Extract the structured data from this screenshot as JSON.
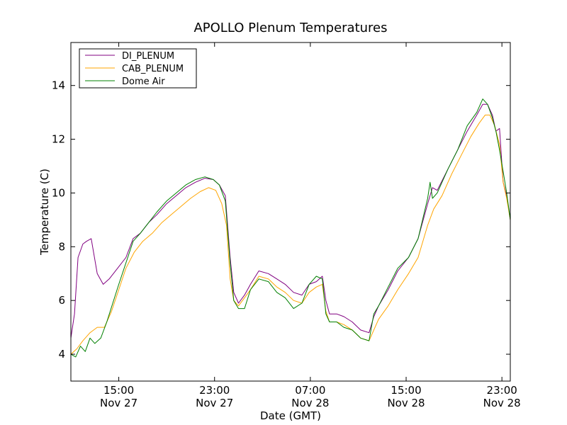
{
  "chart_data": {
    "type": "line",
    "title": "APOLLO Plenum Temperatures",
    "xlabel": "Date (GMT)",
    "ylabel": "Temperature (C)",
    "x_unit": "hours since Nov 27 11:00 GMT",
    "xlim": [
      0,
      36.7
    ],
    "ylim": [
      3,
      15.6
    ],
    "grid": false,
    "legend_position": "top-left",
    "x_ticks": [
      {
        "value": 4,
        "time": "15:00",
        "date": "Nov 27"
      },
      {
        "value": 12,
        "time": "23:00",
        "date": "Nov 27"
      },
      {
        "value": 20,
        "time": "07:00",
        "date": "Nov 28"
      },
      {
        "value": 28,
        "time": "15:00",
        "date": "Nov 28"
      },
      {
        "value": 36,
        "time": "23:00",
        "date": "Nov 28"
      }
    ],
    "y_ticks": [
      {
        "value": 4,
        "label": "4"
      },
      {
        "value": 6,
        "label": "6"
      },
      {
        "value": 8,
        "label": "8"
      },
      {
        "value": 10,
        "label": "10"
      },
      {
        "value": 12,
        "label": "12"
      },
      {
        "value": 14,
        "label": "14"
      }
    ],
    "series": [
      {
        "name": "DI_PLENUM",
        "color": "#800080",
        "x": [
          0,
          0.3,
          0.6,
          1.0,
          1.3,
          1.7,
          2.2,
          2.7,
          3.2,
          3.9,
          4.6,
          5.2,
          5.8,
          6.5,
          7.2,
          8.0,
          8.8,
          9.6,
          10.4,
          11.2,
          11.9,
          12.4,
          12.9,
          13.3,
          13.6,
          14.0,
          14.5,
          15.0,
          15.7,
          16.5,
          17.2,
          17.9,
          18.6,
          19.3,
          19.9,
          20.5,
          21.0,
          21.3,
          21.6,
          22.2,
          22.8,
          23.5,
          24.2,
          24.9,
          25.3,
          25.7,
          26.5,
          27.3,
          28.2,
          29.0,
          29.8,
          30.2,
          30.6,
          31.5,
          32.3,
          33.1,
          33.9,
          34.4,
          34.8,
          35.2,
          35.5,
          35.8,
          36.1,
          36.4,
          36.7
        ],
        "y": [
          4.6,
          5.5,
          7.6,
          8.1,
          8.2,
          8.3,
          7.0,
          6.6,
          6.8,
          7.2,
          7.6,
          8.3,
          8.5,
          8.9,
          9.2,
          9.6,
          9.9,
          10.2,
          10.4,
          10.55,
          10.5,
          10.3,
          9.9,
          7.6,
          6.3,
          5.9,
          6.2,
          6.6,
          7.1,
          7.0,
          6.8,
          6.6,
          6.3,
          6.2,
          6.6,
          6.7,
          6.9,
          6.0,
          5.5,
          5.5,
          5.4,
          5.2,
          4.9,
          4.8,
          5.4,
          5.8,
          6.4,
          7.1,
          7.6,
          8.3,
          9.6,
          10.2,
          10.1,
          10.9,
          11.6,
          12.3,
          12.9,
          13.3,
          13.3,
          12.9,
          12.3,
          12.4,
          10.4,
          9.9,
          9.0
        ]
      },
      {
        "name": "CAB_PLENUM",
        "color": "#ffa500",
        "x": [
          0,
          0.5,
          1.0,
          1.6,
          2.2,
          2.8,
          3.4,
          4.0,
          4.6,
          5.3,
          6.0,
          6.8,
          7.6,
          8.4,
          9.2,
          10.0,
          10.8,
          11.5,
          12.1,
          12.6,
          13.0,
          13.3,
          13.6,
          14.0,
          14.5,
          15.0,
          15.7,
          16.5,
          17.2,
          17.9,
          18.6,
          19.3,
          19.9,
          20.5,
          21.0,
          21.3,
          21.6,
          22.2,
          22.8,
          23.5,
          24.2,
          24.9,
          25.3,
          25.7,
          26.5,
          27.3,
          28.2,
          29.0,
          29.8,
          30.3,
          31.0,
          31.8,
          32.6,
          33.4,
          34.1,
          34.6,
          35.0,
          35.4,
          35.8,
          36.1,
          36.4,
          36.7
        ],
        "y": [
          4.0,
          4.2,
          4.5,
          4.8,
          5.0,
          5.0,
          5.6,
          6.4,
          7.2,
          7.8,
          8.2,
          8.5,
          8.9,
          9.2,
          9.5,
          9.8,
          10.05,
          10.2,
          10.1,
          9.6,
          8.8,
          6.8,
          6.0,
          5.8,
          6.1,
          6.4,
          6.9,
          6.8,
          6.5,
          6.3,
          6.0,
          5.9,
          6.3,
          6.5,
          6.6,
          5.6,
          5.2,
          5.2,
          5.1,
          4.9,
          4.6,
          4.5,
          4.9,
          5.3,
          5.8,
          6.4,
          7.0,
          7.6,
          8.8,
          9.4,
          9.9,
          10.7,
          11.4,
          12.1,
          12.6,
          12.9,
          12.9,
          12.5,
          11.8,
          10.4,
          9.8,
          9.0
        ]
      },
      {
        "name": "Dome Air",
        "color": "#008000",
        "x": [
          0,
          0.4,
          0.8,
          1.2,
          1.6,
          2.0,
          2.5,
          3.0,
          3.5,
          4.0,
          4.6,
          5.2,
          5.8,
          6.5,
          7.2,
          8.0,
          8.8,
          9.6,
          10.4,
          11.2,
          11.9,
          12.4,
          12.9,
          13.3,
          13.6,
          14.0,
          14.5,
          15.0,
          15.7,
          16.5,
          17.2,
          17.9,
          18.6,
          19.3,
          19.9,
          20.5,
          21.0,
          21.3,
          21.6,
          22.2,
          22.8,
          23.5,
          24.2,
          24.9,
          25.3,
          25.7,
          26.5,
          27.3,
          28.2,
          29.0,
          29.8,
          30.0,
          30.2,
          30.6,
          31.5,
          32.3,
          33.1,
          33.9,
          34.4,
          34.8,
          35.2,
          35.5,
          35.8,
          36.1,
          36.4,
          36.7
        ],
        "y": [
          4.0,
          3.9,
          4.3,
          4.1,
          4.6,
          4.4,
          4.6,
          5.2,
          5.9,
          6.6,
          7.4,
          8.2,
          8.5,
          8.9,
          9.3,
          9.7,
          10.0,
          10.3,
          10.5,
          10.6,
          10.5,
          10.3,
          9.7,
          7.4,
          6.0,
          5.7,
          5.7,
          6.4,
          6.8,
          6.7,
          6.3,
          6.1,
          5.7,
          5.9,
          6.6,
          6.9,
          6.8,
          5.5,
          5.2,
          5.2,
          5.0,
          4.9,
          4.6,
          4.5,
          5.5,
          5.8,
          6.5,
          7.2,
          7.6,
          8.3,
          9.8,
          10.4,
          9.8,
          10.0,
          10.9,
          11.6,
          12.5,
          13.0,
          13.5,
          13.3,
          12.8,
          12.3,
          11.6,
          10.8,
          10.0,
          9.0
        ]
      }
    ]
  }
}
